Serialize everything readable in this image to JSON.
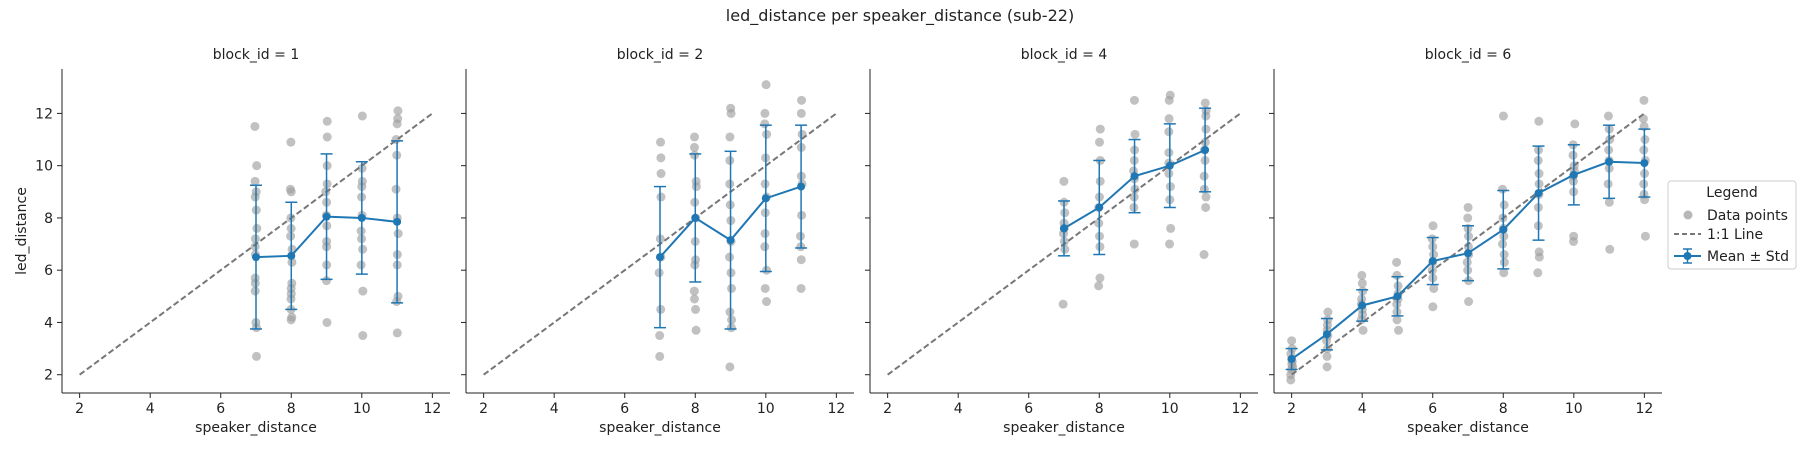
{
  "figure": {
    "title": "led_distance per speaker_distance (sub-22)"
  },
  "legend": {
    "title": "Legend",
    "placement": "right",
    "items": [
      {
        "label": "Data points",
        "marker": "dot",
        "color": "#a0a0a0"
      },
      {
        "label": "1:1 Line",
        "marker": "dashed-line",
        "color": "#777777"
      },
      {
        "label": "Mean ± Std",
        "marker": "line-errorbar",
        "color": "#1f77b4"
      }
    ]
  },
  "colors": {
    "points": "#a0a0a0",
    "mean": "#1f77b4",
    "identity": "#777777",
    "axis": "#222222"
  },
  "chart_data": [
    {
      "type": "scatter",
      "title": "block_id = 1",
      "xlabel": "speaker_distance",
      "ylabel": "led_distance",
      "xlim": [
        1.5,
        12.5
      ],
      "ylim": [
        1.3,
        13.7
      ],
      "xticks": [
        2,
        4,
        6,
        8,
        10,
        12
      ],
      "yticks": [
        2,
        4,
        6,
        8,
        10,
        12
      ],
      "identity_line": [
        2,
        12
      ],
      "points": {
        "7": [
          11.5,
          10.0,
          9.4,
          9.0,
          8.8,
          8.3,
          7.6,
          7.2,
          6.9,
          6.6,
          5.7,
          5.5,
          5.2,
          4.0,
          3.8,
          2.7
        ],
        "8": [
          10.9,
          9.1,
          9.0,
          8.0,
          7.6,
          7.3,
          6.8,
          6.3,
          5.5,
          5.3,
          5.1,
          4.9,
          4.5,
          4.2,
          4.1
        ],
        "9": [
          11.7,
          11.1,
          10.0,
          9.3,
          9.0,
          8.6,
          8.1,
          7.7,
          7.1,
          6.9,
          6.2,
          5.6,
          4.0
        ],
        "10": [
          11.9,
          9.9,
          9.4,
          9.2,
          8.8,
          8.1,
          7.5,
          7.2,
          6.8,
          6.2,
          5.2,
          3.5
        ],
        "11": [
          12.1,
          11.8,
          11.6,
          11.0,
          10.4,
          9.1,
          8.0,
          7.4,
          6.6,
          6.2,
          5.0,
          4.8,
          3.6
        ]
      },
      "means": {
        "x": [
          7,
          8,
          9,
          10,
          11
        ],
        "y": [
          6.5,
          6.55,
          8.05,
          8.0,
          7.85
        ],
        "std": [
          2.75,
          2.05,
          2.4,
          2.15,
          3.1
        ]
      }
    },
    {
      "type": "scatter",
      "title": "block_id = 2",
      "xlabel": "speaker_distance",
      "ylabel": "",
      "xlim": [
        1.5,
        12.5
      ],
      "ylim": [
        1.3,
        13.7
      ],
      "xticks": [
        2,
        4,
        6,
        8,
        10,
        12
      ],
      "yticks": [
        2,
        4,
        6,
        8,
        10,
        12
      ],
      "identity_line": [
        2,
        12
      ],
      "points": {
        "7": [
          10.9,
          10.3,
          9.7,
          8.8,
          7.2,
          6.5,
          5.9,
          4.5,
          3.5,
          2.7
        ],
        "8": [
          11.1,
          10.7,
          10.4,
          9.4,
          9.2,
          8.6,
          8.0,
          7.1,
          6.4,
          6.2,
          5.2,
          4.9,
          4.5,
          3.7
        ],
        "9": [
          12.2,
          12.0,
          11.1,
          10.2,
          9.3,
          8.5,
          7.9,
          7.1,
          6.5,
          5.9,
          5.3,
          4.4,
          4.1,
          3.8,
          2.3
        ],
        "10": [
          13.1,
          12.0,
          11.6,
          11.2,
          10.3,
          9.3,
          8.8,
          8.2,
          7.4,
          6.9,
          6.0,
          5.3,
          4.8
        ],
        "11": [
          12.5,
          12.0,
          11.2,
          10.7,
          9.6,
          9.3,
          8.1,
          7.3,
          6.9,
          6.4,
          5.3
        ]
      },
      "means": {
        "x": [
          7,
          8,
          9,
          10,
          11
        ],
        "y": [
          6.5,
          8.0,
          7.15,
          8.75,
          9.2
        ],
        "std": [
          2.7,
          2.45,
          3.4,
          2.8,
          2.35
        ]
      }
    },
    {
      "type": "scatter",
      "title": "block_id = 4",
      "xlabel": "speaker_distance",
      "ylabel": "",
      "xlim": [
        1.5,
        12.5
      ],
      "ylim": [
        1.3,
        13.7
      ],
      "xticks": [
        2,
        4,
        6,
        8,
        10,
        12
      ],
      "yticks": [
        2,
        4,
        6,
        8,
        10,
        12
      ],
      "identity_line": [
        2,
        12
      ],
      "points": {
        "7": [
          9.4,
          8.6,
          8.2,
          7.8,
          7.6,
          7.4,
          7.1,
          6.8,
          4.7
        ],
        "8": [
          11.4,
          10.9,
          10.2,
          9.4,
          8.8,
          8.4,
          7.8,
          7.3,
          6.9,
          5.7,
          5.4
        ],
        "9": [
          12.5,
          11.2,
          10.6,
          10.2,
          9.8,
          9.5,
          9.1,
          8.8,
          8.4,
          7.0
        ],
        "10": [
          12.7,
          12.5,
          11.8,
          11.3,
          10.5,
          10.1,
          9.7,
          9.2,
          8.7,
          7.6,
          7.0
        ],
        "11": [
          12.4,
          12.1,
          11.9,
          11.4,
          10.9,
          10.6,
          10.2,
          9.6,
          9.1,
          8.8,
          8.4,
          6.6
        ]
      },
      "means": {
        "x": [
          7,
          8,
          9,
          10,
          11
        ],
        "y": [
          7.6,
          8.4,
          9.6,
          10.0,
          10.6
        ],
        "std": [
          1.05,
          1.8,
          1.4,
          1.6,
          1.6
        ]
      }
    },
    {
      "type": "scatter",
      "title": "block_id = 6",
      "xlabel": "speaker_distance",
      "ylabel": "",
      "xlim": [
        1.5,
        12.5
      ],
      "ylim": [
        1.3,
        13.7
      ],
      "xticks": [
        2,
        4,
        6,
        8,
        10,
        12
      ],
      "yticks": [
        2,
        4,
        6,
        8,
        10,
        12
      ],
      "identity_line": [
        2,
        12
      ],
      "points": {
        "2": [
          3.3,
          3.0,
          2.8,
          2.6,
          2.5,
          2.4,
          2.3,
          2.2,
          2.0,
          1.8
        ],
        "3": [
          4.4,
          4.1,
          3.9,
          3.7,
          3.5,
          3.3,
          3.0,
          2.7,
          2.3
        ],
        "4": [
          5.8,
          5.5,
          5.2,
          4.9,
          4.7,
          4.5,
          4.3,
          4.1,
          3.7
        ],
        "5": [
          6.3,
          5.8,
          5.4,
          5.1,
          4.9,
          4.7,
          4.4,
          4.1,
          3.7
        ],
        "6": [
          7.7,
          7.2,
          6.9,
          6.6,
          6.3,
          6.0,
          5.7,
          5.3,
          4.6
        ],
        "7": [
          8.4,
          8.0,
          7.6,
          7.3,
          6.9,
          6.6,
          6.3,
          6.0,
          5.6,
          4.8
        ],
        "8": [
          11.9,
          9.1,
          8.5,
          8.0,
          7.6,
          7.3,
          7.0,
          6.6,
          6.3,
          5.9
        ],
        "9": [
          11.7,
          10.6,
          10.2,
          9.7,
          9.3,
          8.9,
          8.4,
          7.7,
          6.7,
          6.5,
          5.9
        ],
        "10": [
          11.6,
          10.8,
          10.4,
          10.0,
          9.8,
          9.6,
          9.4,
          9.0,
          7.3,
          7.1
        ],
        "11": [
          11.9,
          11.4,
          11.0,
          10.6,
          10.2,
          9.9,
          9.3,
          8.6,
          6.8
        ],
        "12": [
          12.5,
          11.8,
          11.5,
          11.0,
          10.6,
          10.2,
          9.7,
          9.3,
          8.9,
          8.7,
          7.3
        ]
      },
      "means": {
        "x": [
          2,
          3,
          4,
          5,
          6,
          7,
          8,
          9,
          10,
          11,
          12
        ],
        "y": [
          2.6,
          3.55,
          4.65,
          5.0,
          6.35,
          6.65,
          7.55,
          8.95,
          9.65,
          10.15,
          10.1
        ],
        "std": [
          0.4,
          0.6,
          0.6,
          0.75,
          0.9,
          1.05,
          1.5,
          1.8,
          1.15,
          1.4,
          1.3
        ]
      }
    }
  ]
}
